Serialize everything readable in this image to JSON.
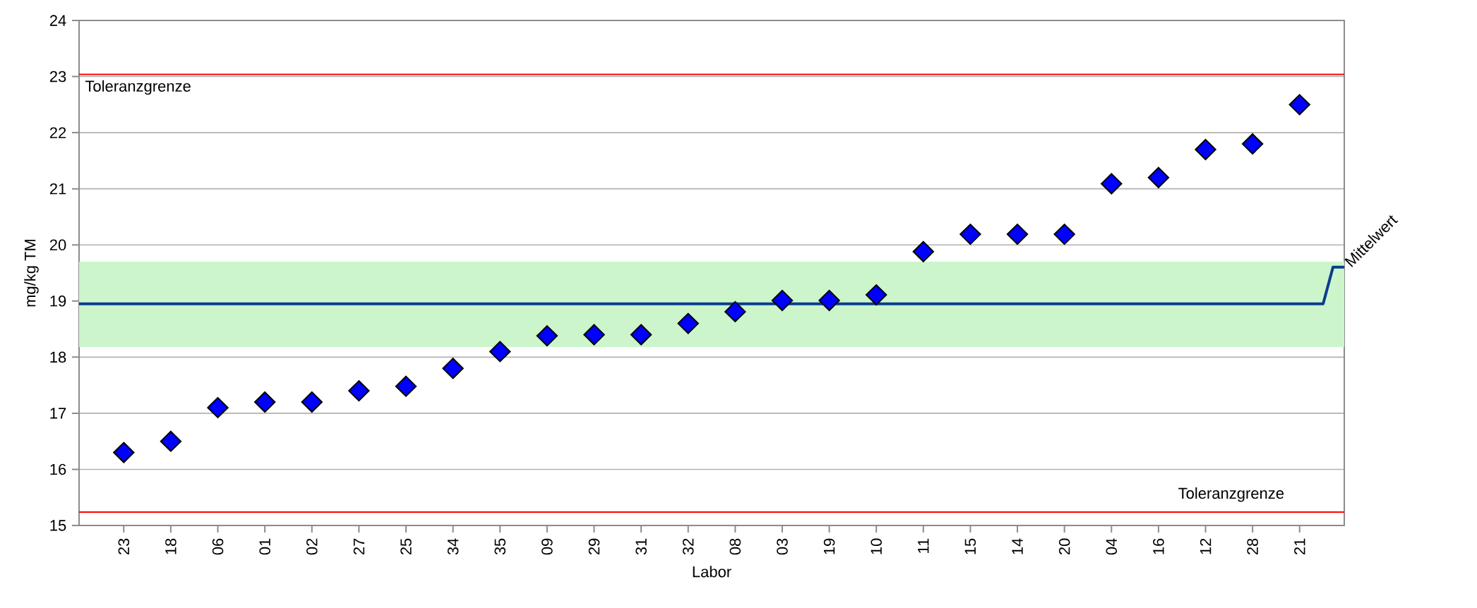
{
  "chart_data": {
    "type": "scatter",
    "xlabel": "Labor",
    "ylabel": "mg/kg TM",
    "categories": [
      "23",
      "18",
      "06",
      "01",
      "02",
      "27",
      "25",
      "34",
      "35",
      "09",
      "29",
      "31",
      "32",
      "08",
      "03",
      "19",
      "10",
      "11",
      "15",
      "14",
      "20",
      "04",
      "16",
      "12",
      "28",
      "21"
    ],
    "series": [
      {
        "color": "#0000ff",
        "values": [
          16.3,
          16.5,
          17.1,
          17.2,
          17.2,
          17.4,
          17.48,
          17.8,
          18.1,
          18.38,
          18.4,
          18.4,
          18.6,
          18.81,
          19.01,
          19.01,
          19.11,
          19.88,
          20.19,
          20.19,
          20.19,
          21.09,
          21.2,
          21.7,
          21.8,
          22.5
        ]
      }
    ],
    "ylim": [
      15,
      24
    ],
    "yticks": [
      15,
      16,
      17,
      18,
      19,
      20,
      21,
      22,
      23,
      24
    ],
    "ref_lines": [
      {
        "axis": "y",
        "value": 23.04,
        "label": "Toleranzgrenze",
        "color": "#ff0000"
      },
      {
        "axis": "y",
        "value": 15.24,
        "label": "Toleranzgrenze",
        "color": "#ff0000"
      },
      {
        "axis": "y",
        "value": 18.95,
        "label": "Mittelwert",
        "color": "#0a3d8f"
      }
    ],
    "bands": [
      {
        "axis": "y",
        "from": 18.18,
        "to": 19.7,
        "color": "#ccf5cc"
      }
    ],
    "grid": "y",
    "marker": "diamond"
  }
}
